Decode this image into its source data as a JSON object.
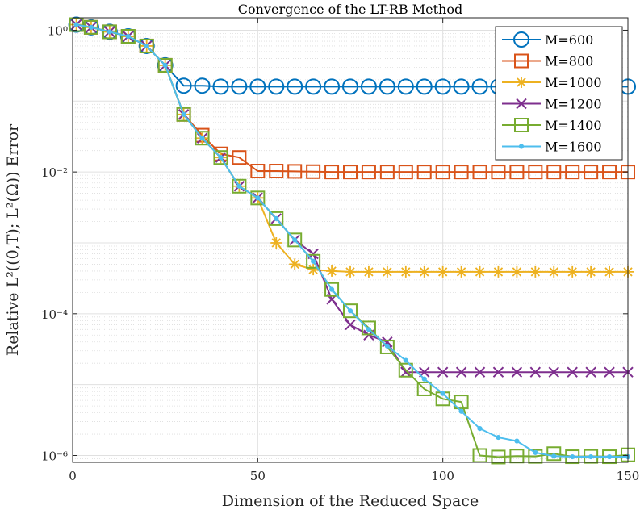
{
  "chart_data": {
    "type": "line",
    "title": "Convergence of the LT-RB Method",
    "xlabel": "Dimension of the Reduced Space",
    "ylabel": "Relative L²((0,T); L²(Ω)) Error",
    "yscale": "log",
    "xlim": [
      0,
      150
    ],
    "ylim": [
      8e-07,
      1.5
    ],
    "xticks": [
      0,
      50,
      100,
      150
    ],
    "xtick_labels": [
      "0",
      "50",
      "100",
      "150"
    ],
    "yticks": [
      1e-06,
      0.0001,
      0.01,
      1
    ],
    "ytick_labels": [
      "10⁻⁶",
      "10⁻⁴",
      "10⁻²",
      "10⁰"
    ],
    "grid": true,
    "legend_position": "top-right",
    "x": [
      1,
      5,
      10,
      15,
      20,
      25,
      30,
      35,
      40,
      45,
      50,
      55,
      60,
      65,
      70,
      75,
      80,
      85,
      90,
      95,
      100,
      105,
      110,
      115,
      120,
      125,
      130,
      135,
      140,
      145,
      150
    ],
    "series": [
      {
        "name": "M=600",
        "color": "#0072BD",
        "marker": "circle",
        "values": [
          1.2,
          1.1,
          0.95,
          0.82,
          0.6,
          0.32,
          0.165,
          0.165,
          0.16,
          0.16,
          0.16,
          0.16,
          0.16,
          0.16,
          0.16,
          0.16,
          0.16,
          0.16,
          0.16,
          0.16,
          0.16,
          0.16,
          0.16,
          0.16,
          0.16,
          0.16,
          0.16,
          0.16,
          0.16,
          0.16,
          0.16
        ]
      },
      {
        "name": "M=800",
        "color": "#D95319",
        "marker": "square",
        "values": [
          1.2,
          1.1,
          0.95,
          0.82,
          0.6,
          0.32,
          0.065,
          0.033,
          0.018,
          0.016,
          0.0103,
          0.0103,
          0.0102,
          0.0101,
          0.01,
          0.01,
          0.01,
          0.01,
          0.01,
          0.01,
          0.01,
          0.01,
          0.01,
          0.01,
          0.01,
          0.01,
          0.01,
          0.01,
          0.01,
          0.01,
          0.01
        ]
      },
      {
        "name": "M=1000",
        "color": "#EDB120",
        "marker": "star",
        "values": [
          1.2,
          1.1,
          0.95,
          0.82,
          0.6,
          0.32,
          0.065,
          0.03,
          0.016,
          0.0063,
          0.0043,
          0.001,
          0.0005,
          0.00042,
          0.0004,
          0.00039,
          0.00039,
          0.00039,
          0.00039,
          0.00039,
          0.00039,
          0.00039,
          0.00039,
          0.00039,
          0.00039,
          0.00039,
          0.00039,
          0.00039,
          0.00039,
          0.00039,
          0.00039
        ]
      },
      {
        "name": "M=1200",
        "color": "#7E2F8E",
        "marker": "cross",
        "values": [
          1.2,
          1.1,
          0.95,
          0.82,
          0.6,
          0.32,
          0.065,
          0.03,
          0.016,
          0.0063,
          0.0043,
          0.0022,
          0.0011,
          0.0007,
          0.00016,
          7e-05,
          5e-05,
          4e-05,
          1.5e-05,
          1.5e-05,
          1.5e-05,
          1.5e-05,
          1.5e-05,
          1.5e-05,
          1.5e-05,
          1.5e-05,
          1.5e-05,
          1.5e-05,
          1.5e-05,
          1.5e-05,
          1.5e-05
        ]
      },
      {
        "name": "M=1400",
        "color": "#77AC30",
        "marker": "square",
        "values": [
          1.2,
          1.1,
          0.95,
          0.82,
          0.6,
          0.32,
          0.065,
          0.03,
          0.016,
          0.0063,
          0.0043,
          0.0022,
          0.0011,
          0.00055,
          0.00022,
          0.00011,
          6.3e-05,
          3.4e-05,
          1.6e-05,
          8.7e-06,
          6.3e-06,
          5.7e-06,
          1e-06,
          9.5e-07,
          9.8e-07,
          9.7e-07,
          1.06e-06,
          9.6e-07,
          9.7e-07,
          9.6e-07,
          1.02e-06
        ]
      },
      {
        "name": "M=1600",
        "color": "#4DBEEE",
        "marker": "dot",
        "values": [
          1.2,
          1.1,
          0.95,
          0.82,
          0.6,
          0.32,
          0.065,
          0.03,
          0.016,
          0.0063,
          0.0043,
          0.0022,
          0.0011,
          0.00055,
          0.00022,
          0.00011,
          6e-05,
          3.5e-05,
          2.2e-05,
          1.2e-05,
          7.5e-06,
          4.2e-06,
          2.4e-06,
          1.8e-06,
          1.6e-06,
          1.1e-06,
          9.8e-07,
          9.6e-07,
          9.6e-07,
          9.6e-07,
          9.6e-07
        ]
      }
    ]
  }
}
